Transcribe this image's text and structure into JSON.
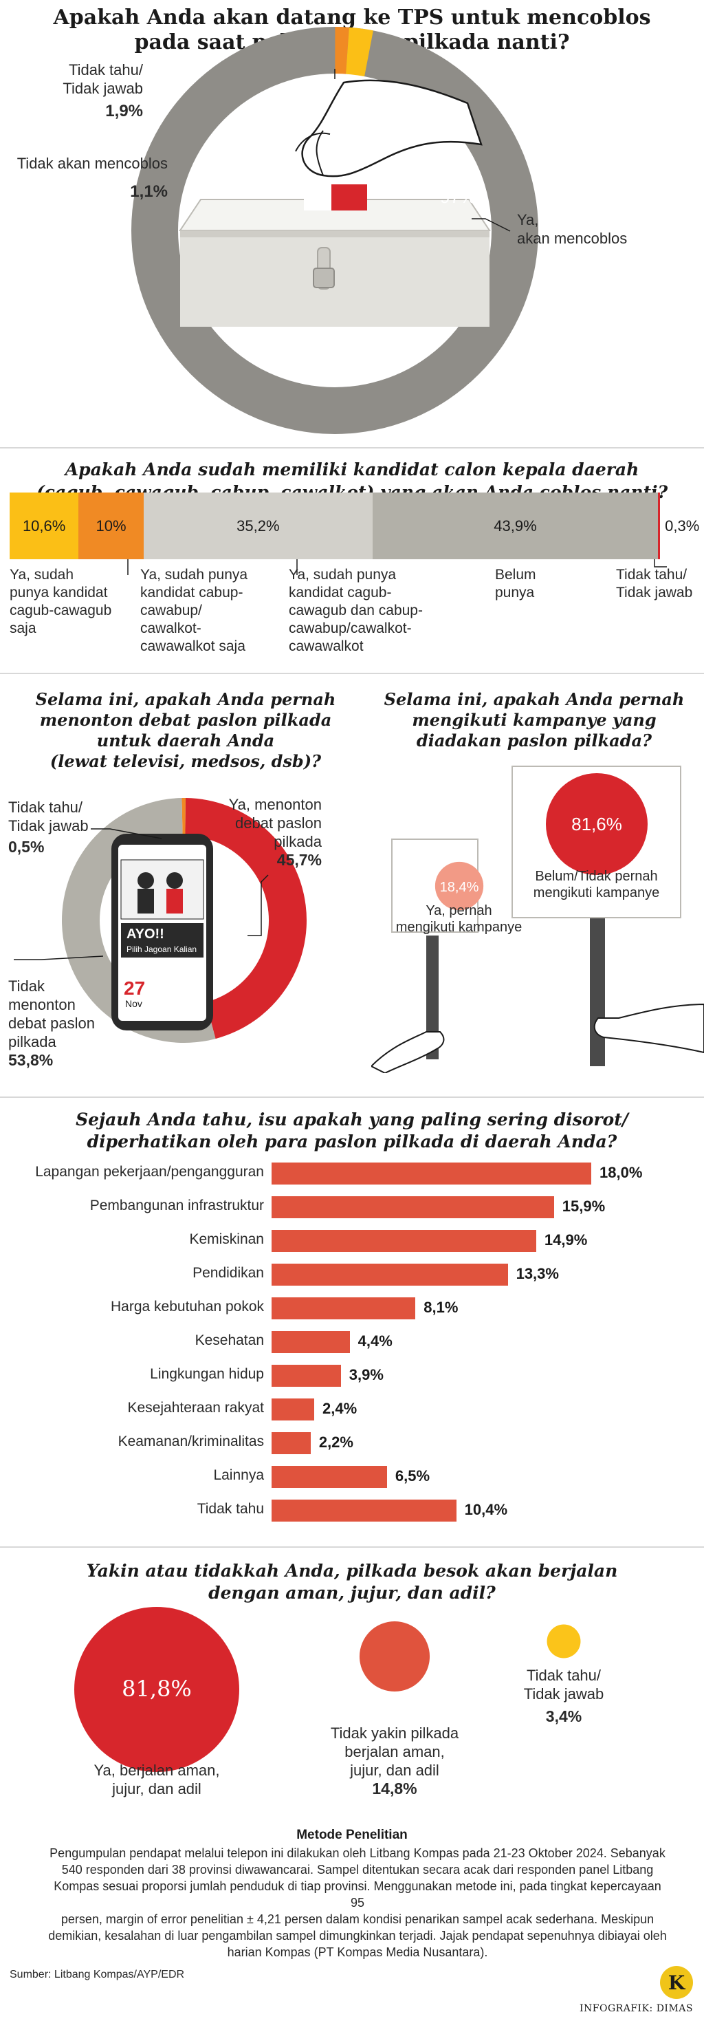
{
  "chart_data": [
    {
      "type": "pie",
      "title": "Apakah Anda akan datang ke TPS untuk mencoblos pada saat pelaksanaan pilkada nanti?",
      "slices": [
        {
          "label": "Ya, akan mencoblos",
          "value": 97,
          "display": "97%",
          "color": "#8f8d88"
        },
        {
          "label": "Tidak akan mencoblos",
          "value": 1.1,
          "display": "1,1%",
          "color": "#f08a24"
        },
        {
          "label": "Tidak tahu/ Tidak jawab",
          "value": 1.9,
          "display": "1,9%",
          "color": "#fbbf16"
        }
      ]
    },
    {
      "type": "bar",
      "title": "Apakah Anda sudah memiliki kandidat calon kepala daerah (cagub, cawagub, cabup, cawalkot) yang akan Anda coblos nanti?",
      "stacked": true,
      "segments": [
        {
          "label": "Ya, sudah punya kandidat cagub-cawagub saja",
          "value": 10.6,
          "display": "10,6%",
          "color": "#fbbf16"
        },
        {
          "label": "Ya, sudah punya kandidat cabup-cawabup/ cawalkot-cawawalkot saja",
          "value": 10,
          "display": "10%",
          "color": "#f08a24"
        },
        {
          "label": "Ya, sudah punya kandidat cagub-cawagub dan cabup-cawabup/cawalkot-cawawalkot",
          "value": 35.2,
          "display": "35,2%",
          "color": "#d2d0ca"
        },
        {
          "label": "Belum punya",
          "value": 43.9,
          "display": "43,9%",
          "color": "#b2b0a8"
        },
        {
          "label": "Tidak tahu/ Tidak jawab",
          "value": 0.3,
          "display": "0,3%",
          "color": "#d7262c"
        }
      ]
    },
    {
      "type": "pie",
      "donut": true,
      "title": "Selama ini, apakah Anda pernah menonton debat paslon pilkada untuk daerah Anda (lewat televisi, medsos, dsb)?",
      "slices": [
        {
          "label": "Ya, menonton debat paslon pilkada",
          "value": 45.7,
          "display": "45,7%",
          "color": "#d7262c"
        },
        {
          "label": "Tidak menonton debat paslon pilkada",
          "value": 53.8,
          "display": "53,8%",
          "color": "#b2b0a8"
        },
        {
          "label": "Tidak tahu/ Tidak jawab",
          "value": 0.5,
          "display": "0,5%",
          "color": "#f08a24"
        }
      ]
    },
    {
      "type": "pie",
      "title": "Selama ini, apakah Anda pernah mengikuti kampanye yang diadakan paslon pilkada?",
      "slices": [
        {
          "label": "Belum/Tidak pernah mengikuti kampanye",
          "value": 81.6,
          "display": "81,6%",
          "color": "#d7262c"
        },
        {
          "label": "Ya, pernah mengikuti kampanye",
          "value": 18.4,
          "display": "18,4%",
          "color": "#f29a86"
        }
      ]
    },
    {
      "type": "bar",
      "orientation": "horizontal",
      "title": "Sejauh Anda tahu, isu apakah yang paling sering disorot/ diperhatikan oleh para paslon pilkada di daerah Anda?",
      "categories": [
        "Lapangan pekerjaan/pengangguran",
        "Pembangunan infrastruktur",
        "Kemiskinan",
        "Pendidikan",
        "Harga kebutuhan pokok",
        "Kesehatan",
        "Lingkungan hidup",
        "Kesejahteraan rakyat",
        "Keamanan/kriminalitas",
        "Lainnya",
        "Tidak tahu"
      ],
      "values": [
        18.0,
        15.9,
        14.9,
        13.3,
        8.1,
        4.4,
        3.9,
        2.4,
        2.2,
        6.5,
        10.4
      ],
      "labels": [
        "18,0%",
        "15,9%",
        "14,9%",
        "13,3%",
        "8,1%",
        "4,4%",
        "3,9%",
        "2,4%",
        "2,2%",
        "6,5%",
        "10,4%"
      ],
      "color": "#e0533d"
    },
    {
      "type": "pie",
      "variant": "bubble",
      "title": "Yakin atau tidakkah Anda, pilkada besok akan berjalan dengan aman, jujur, dan adil?",
      "slices": [
        {
          "label": "Ya, berjalan aman, jujur, dan adil",
          "value": 81.8,
          "display": "81,8%",
          "color": "#d7262c"
        },
        {
          "label": "Tidak yakin pilkada berjalan aman, jujur, dan adil",
          "value": 14.8,
          "display": "14,8%",
          "color": "#e0533d"
        },
        {
          "label": "Tidak tahu/ Tidak jawab",
          "value": 3.4,
          "display": "3,4%",
          "color": "#fbc41a"
        }
      ]
    }
  ],
  "text": {
    "pie1": {
      "title1": "Apakah Anda akan datang ke TPS untuk mencoblos",
      "title2": "pada saat pelaksanaan pilkada nanti?",
      "unk_l1": "Tidak tahu/",
      "unk_l2": "Tidak jawab",
      "unk_val": "1,9%",
      "no_l1": "Tidak akan mencoblos",
      "no_val": "1,1%",
      "yes_val": "97%",
      "yes_l1": "Ya,",
      "yes_l2": "akan mencoblos"
    },
    "stack": {
      "title1": "Apakah Anda sudah memiliki kandidat calon kepala daerah",
      "title2": "(cagub, cawagub, cabup, cawalkot) yang akan Anda coblos nanti?",
      "v1": "10,6%",
      "v2": "10%",
      "v3": "35,2%",
      "v4": "43,9%",
      "v5": "0,3%",
      "a1": "Ya, sudah",
      "a2": "punya kandidat",
      "a3": "cagub-cawagub",
      "a4": "saja",
      "b1": "Ya, sudah punya",
      "b2": "kandidat cabup-",
      "b3": "cawabup/",
      "b4": "cawalkot-",
      "b5": "cawawalkot saja",
      "c1": "Ya, sudah punya",
      "c2": "kandidat cagub-",
      "c3": "cawagub dan cabup-",
      "c4": "cawabup/cawalkot-",
      "c5": "cawawalkot",
      "d1": "Belum",
      "d2": "punya",
      "e1": "Tidak tahu/",
      "e2": "Tidak jawab"
    },
    "donut": {
      "t1": "Selama ini, apakah Anda pernah",
      "t2": "menonton debat paslon pilkada",
      "t3": "untuk daerah Anda",
      "t4": "(lewat televisi, medsos, dsb)?",
      "unk_l1": "Tidak tahu/",
      "unk_l2": "Tidak jawab",
      "unk_val": "0,5%",
      "yes_l1": "Ya, menonton",
      "yes_l2": "debat paslon",
      "yes_l3": "pilkada",
      "yes_val": "45,7%",
      "no_l1": "Tidak",
      "no_l2": "menonton",
      "no_l3": "debat paslon",
      "no_l4": "pilkada",
      "no_val": "53,8%",
      "phone_ayo": "AYO!!",
      "phone_sub": "Pilih Jagoan Kalian",
      "phone_date": "27",
      "phone_month": "Nov"
    },
    "camp": {
      "t1": "Selama ini, apakah Anda pernah",
      "t2": "mengikuti kampanye yang",
      "t3": "diadakan paslon pilkada?",
      "big_val": "81,6%",
      "big_l1": "Belum/Tidak pernah",
      "big_l2": "mengikuti kampanye",
      "small_val": "18,4%",
      "small_l1": "Ya, pernah",
      "small_l2": "mengikuti kampanye"
    },
    "hbar": {
      "t1": "Sejauh Anda tahu, isu apakah yang paling sering disorot/",
      "t2": "diperhatikan oleh para paslon pilkada di daerah Anda?"
    },
    "bubble": {
      "t1": "Yakin atau tidakkah Anda, pilkada besok akan berjalan",
      "t2": "dengan aman, jujur, dan adil?",
      "a_val": "81,8%",
      "a_l1": "Ya, berjalan aman,",
      "a_l2": "jujur, dan adil",
      "b_l1": "Tidak yakin pilkada",
      "b_l2": "berjalan aman,",
      "b_l3": "jujur, dan adil",
      "b_val": "14,8%",
      "c_l1": "Tidak tahu/",
      "c_l2": "Tidak jawab",
      "c_val": "3,4%"
    },
    "method": {
      "title": "Metode Penelitian",
      "l1": "Pengumpulan pendapat melalui telepon ini dilakukan oleh Litbang Kompas pada 21-23 Oktober 2024. Sebanyak",
      "l2": "540 responden dari 38 provinsi diwawancarai. Sampel ditentukan secara acak dari responden panel Litbang",
      "l3": "Kompas sesuai proporsi jumlah penduduk di tiap provinsi. Menggunakan metode ini, pada tingkat kepercayaan 95",
      "l4": "persen, margin of error penelitian ± 4,21 persen dalam kondisi penarikan sampel acak sederhana. Meskipun",
      "l5": "demikian, kesalahan di luar pengambilan sampel dimungkinkan terjadi. Jajak pendapat sepenuhnya dibiayai oleh",
      "l6": "harian Kompas (PT Kompas Media Nusantara)."
    },
    "footer": {
      "source": "Sumber: Litbang Kompas/AYP/EDR",
      "credit": "INFOGRAFIK: DIMAS",
      "logo": "K"
    }
  }
}
